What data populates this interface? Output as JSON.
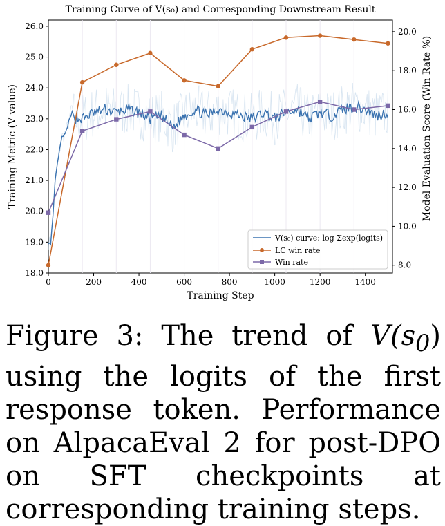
{
  "chart_data": {
    "type": "line",
    "title": "Training Curve of V(s₀) and Corresponding Downstream Result",
    "xlabel": "Training Step",
    "ylabel_left": "Training Metric (V value)",
    "ylabel_right": "Model Evaluation Score (Win Rate %)",
    "xlim": [
      0,
      1520
    ],
    "ylim_left": [
      18.0,
      26.2
    ],
    "ylim_right": [
      7.6,
      20.6
    ],
    "x_ticks": [
      "0",
      "200",
      "400",
      "600",
      "800",
      "1000",
      "1200",
      "1400"
    ],
    "y_left_ticks": [
      "18.0",
      "19.0",
      "20.0",
      "21.0",
      "22.0",
      "23.0",
      "24.0",
      "25.0",
      "26.0"
    ],
    "y_right_ticks": [
      "8.0",
      "10.0",
      "12.0",
      "14.0",
      "16.0",
      "18.0",
      "20.0"
    ],
    "legend_position": "lower-right",
    "series": [
      {
        "name": "V(s₀) curve: log Σexp(logits)",
        "axis": "left",
        "color": "#3b73b0",
        "x": [
          0,
          10,
          20,
          30,
          45,
          60,
          75,
          90,
          105,
          120,
          150,
          200,
          250,
          300,
          350,
          400,
          450,
          500,
          550,
          600,
          650,
          700,
          750,
          800,
          850,
          900,
          950,
          1000,
          1050,
          1100,
          1150,
          1200,
          1250,
          1300,
          1350,
          1400,
          1450,
          1500
        ],
        "values": [
          19.0,
          18.9,
          19.8,
          21.0,
          21.8,
          22.4,
          22.5,
          22.9,
          23.2,
          23.0,
          23.0,
          23.2,
          23.3,
          23.2,
          23.3,
          23.2,
          23.0,
          23.1,
          22.7,
          23.1,
          23.3,
          23.1,
          23.3,
          23.2,
          23.1,
          23.0,
          23.2,
          23.0,
          23.2,
          23.3,
          23.0,
          23.2,
          23.1,
          23.3,
          23.4,
          23.3,
          23.1,
          23.2
        ]
      },
      {
        "name": "LC win rate",
        "axis": "right",
        "color": "#c8692b",
        "x": [
          0,
          150,
          300,
          450,
          600,
          750,
          900,
          1050,
          1200,
          1350,
          1500
        ],
        "values": [
          8.0,
          17.4,
          18.3,
          18.9,
          17.5,
          17.2,
          19.1,
          19.7,
          19.8,
          19.6,
          19.4
        ]
      },
      {
        "name": "Win rate",
        "axis": "right",
        "color": "#7c69a8",
        "x": [
          0,
          150,
          300,
          450,
          600,
          750,
          900,
          1050,
          1200,
          1350,
          1500
        ],
        "values": [
          10.7,
          14.9,
          15.5,
          15.9,
          14.7,
          14.0,
          15.1,
          15.9,
          16.4,
          16.0,
          16.2
        ]
      }
    ]
  },
  "caption": {
    "prefix": "Figure 3: The trend of ",
    "math": "V(s",
    "math_sub": "0",
    "math_close": ")",
    "suffix": " using the logits of the first response token. Performance on AlpacaEval 2 for post-DPO on SFT checkpoints at corresponding training steps."
  }
}
